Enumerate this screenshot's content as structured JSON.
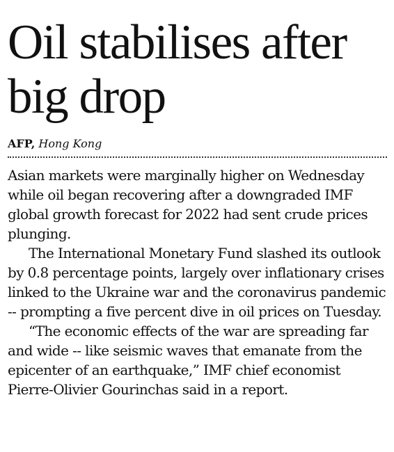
{
  "article": {
    "headline_line1": "Oil stabilises after",
    "headline_line2": "big drop",
    "agency": "AFP,",
    "dateline": "Hong Kong",
    "paragraphs": [
      "Asian markets were marginally higher on Wednesday while oil began recovering after a downgraded IMF global growth forecast for 2022 had sent crude prices plunging.",
      "The International Monetary Fund slashed its outlook by 0.8 percentage points, largely over inflationary crises linked to the Ukraine war and the coronavirus pandemic -- prompting a five percent dive in oil prices on Tuesday.",
      "“The economic effects of the war are spreading far and wide -- like seismic waves that emanate from the epicenter of an earthquake,” IMF chief economist Pierre-Olivier Gourinchas said in a report."
    ]
  }
}
